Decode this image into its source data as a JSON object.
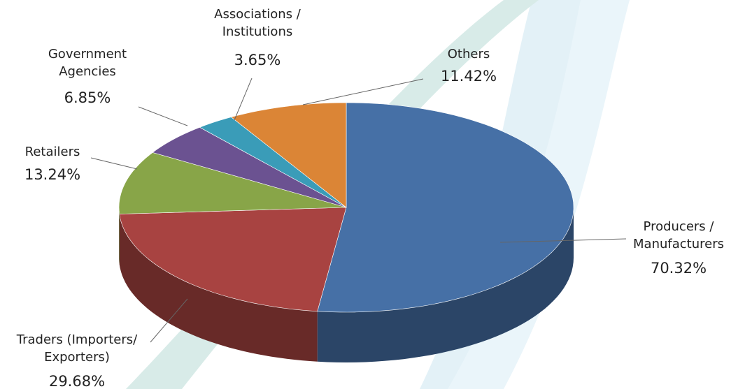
{
  "chart_data": {
    "type": "pie3d",
    "categories": [
      "Producers / Manufacturers",
      "Traders (Importers/ Exporters)",
      "Retailers",
      "Government Agencies",
      "Associations / Institutions",
      "Others"
    ],
    "values": [
      70.32,
      29.68,
      13.24,
      6.85,
      3.65,
      11.42
    ],
    "value_labels": [
      "70.32%",
      "29.68%",
      "13.24%",
      "6.85%",
      "3.65%",
      "11.42%"
    ],
    "colors": [
      "#4670a6",
      "#a84341",
      "#88a548",
      "#6b5291",
      "#3a9cb8",
      "#db8536"
    ]
  }
}
